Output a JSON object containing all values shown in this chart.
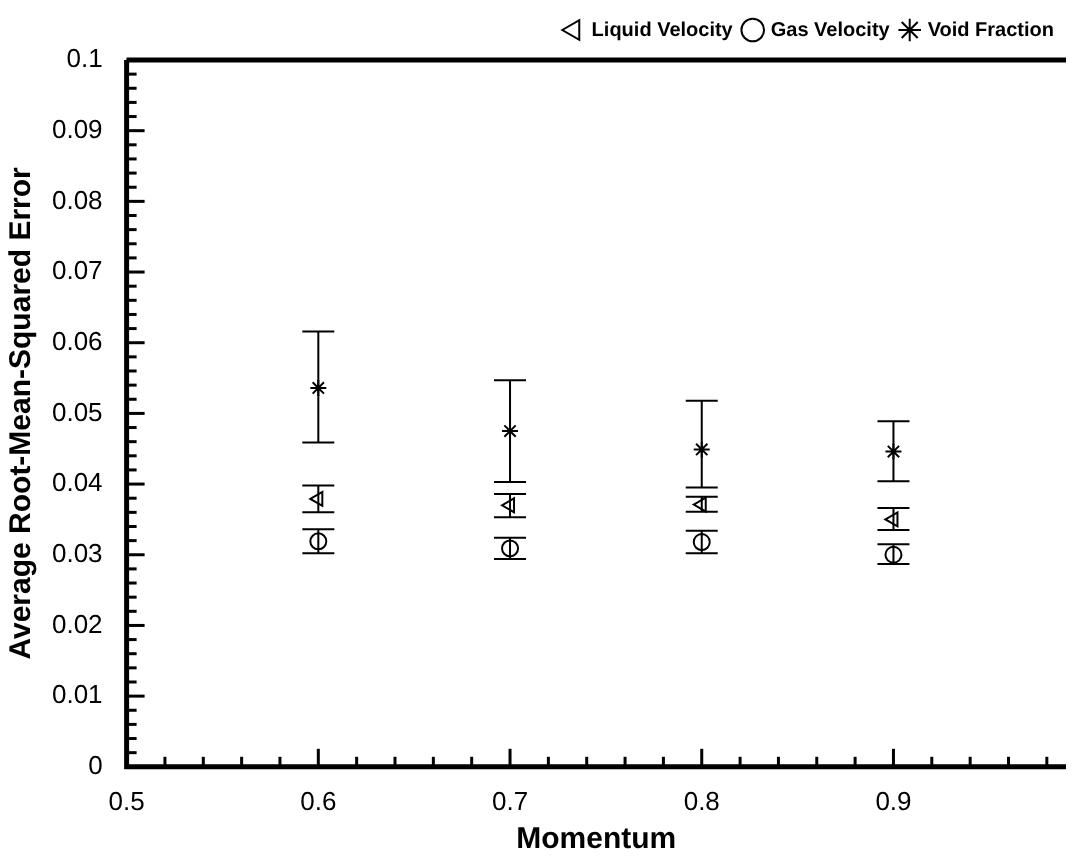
{
  "chart_data": {
    "type": "scatter",
    "xlabel": "Momentum",
    "ylabel": "Average Root-Mean-Squared Error",
    "x": [
      0.6,
      0.7,
      0.8,
      0.9
    ],
    "series": [
      {
        "name": "Liquid Velocity",
        "color": "#000000",
        "marker": "triangle",
        "values": [
          0.0379,
          0.037,
          0.0371,
          0.035
        ],
        "errors": [
          [
            0.036,
            0.0398
          ],
          [
            0.0353,
            0.0386
          ],
          [
            0.0361,
            0.0382
          ],
          [
            0.0335,
            0.0366
          ]
        ]
      },
      {
        "name": "Gas Velocity",
        "color": "#000000",
        "marker": "circle",
        "values": [
          0.0319,
          0.0309,
          0.0318,
          0.03
        ],
        "errors": [
          [
            0.0302,
            0.0336
          ],
          [
            0.0294,
            0.0324
          ],
          [
            0.0302,
            0.0334
          ],
          [
            0.0287,
            0.0315
          ]
        ]
      },
      {
        "name": "Void Fraction",
        "color": "#000000",
        "marker": "cross",
        "values": [
          0.0536,
          0.0475,
          0.0449,
          0.0446
        ],
        "errors": [
          [
            0.0459,
            0.0616
          ],
          [
            0.0403,
            0.0547
          ],
          [
            0.0395,
            0.0518
          ],
          [
            0.0404,
            0.0489
          ]
        ]
      }
    ],
    "xlim": [
      0.5,
      0.99
    ],
    "xticks": [
      0.5,
      {
        "value": 0.52,
        "label": null
      },
      {
        "value": 0.54,
        "label": null
      },
      {
        "value": 0.56,
        "label": null
      },
      {
        "value": 0.58,
        "label": null
      },
      0.6,
      {
        "value": 0.62,
        "label": null
      },
      {
        "value": 0.64,
        "label": null
      },
      {
        "value": 0.66,
        "label": null
      },
      {
        "value": 0.68,
        "label": null
      },
      0.7,
      {
        "value": 0.72,
        "label": null
      },
      {
        "value": 0.74,
        "label": null
      },
      {
        "value": 0.76,
        "label": null
      },
      {
        "value": 0.78,
        "label": null
      },
      0.8,
      {
        "value": 0.82,
        "label": null
      },
      {
        "value": 0.84,
        "label": null
      },
      {
        "value": 0.86,
        "label": null
      },
      {
        "value": 0.88,
        "label": null
      },
      0.9,
      {
        "value": 0.92,
        "label": null
      },
      {
        "value": 0.94,
        "label": null
      },
      {
        "value": 0.96,
        "label": null
      },
      {
        "value": 0.98,
        "label": null
      }
    ],
    "ylim": [
      0,
      0.1
    ],
    "yticks": [
      0,
      {
        "value": 0.002,
        "label": null
      },
      {
        "value": 0.004,
        "label": null
      },
      {
        "value": 0.006,
        "label": null
      },
      {
        "value": 0.008,
        "label": null
      },
      0.01,
      {
        "value": 0.012,
        "label": null
      },
      {
        "value": 0.014,
        "label": null
      },
      {
        "value": 0.016,
        "label": null
      },
      {
        "value": 0.018,
        "label": null
      },
      0.02,
      {
        "value": 0.022,
        "label": null
      },
      {
        "value": 0.024,
        "label": null
      },
      {
        "value": 0.026,
        "label": null
      },
      {
        "value": 0.028,
        "label": null
      },
      0.03,
      {
        "value": 0.032,
        "label": null
      },
      {
        "value": 0.034,
        "label": null
      },
      {
        "value": 0.036,
        "label": null
      },
      {
        "value": 0.038,
        "label": null
      },
      0.04,
      {
        "value": 0.042,
        "label": null
      },
      {
        "value": 0.044,
        "label": null
      },
      {
        "value": 0.046,
        "label": null
      },
      {
        "value": 0.048,
        "label": null
      },
      0.05,
      {
        "value": 0.052,
        "label": null
      },
      {
        "value": 0.054,
        "label": null
      },
      {
        "value": 0.056,
        "label": null
      },
      {
        "value": 0.058,
        "label": null
      },
      0.06,
      {
        "value": 0.062,
        "label": null
      },
      {
        "value": 0.064,
        "label": null
      },
      {
        "value": 0.066,
        "label": null
      },
      {
        "value": 0.068,
        "label": null
      },
      0.07,
      {
        "value": 0.072,
        "label": null
      },
      {
        "value": 0.074,
        "label": null
      },
      {
        "value": 0.076,
        "label": null
      },
      {
        "value": 0.078,
        "label": null
      },
      0.08,
      {
        "value": 0.082,
        "label": null
      },
      {
        "value": 0.084,
        "label": null
      },
      {
        "value": 0.086,
        "label": null
      },
      {
        "value": 0.088,
        "label": null
      },
      0.09,
      {
        "value": 0.092,
        "label": null
      },
      {
        "value": 0.094,
        "label": null
      },
      {
        "value": 0.096,
        "label": null
      },
      {
        "value": 0.098,
        "label": null
      },
      0.1
    ],
    "grid": false,
    "legend": "top right"
  }
}
